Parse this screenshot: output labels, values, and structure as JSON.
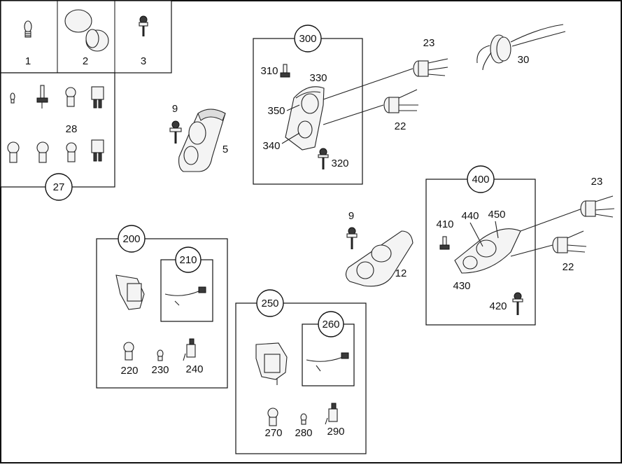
{
  "diagram": {
    "cells": {
      "c1": "1",
      "c2": "2",
      "c3": "3",
      "c28": "28",
      "c27": "27"
    },
    "parts": {
      "p5": "5",
      "p9a": "9",
      "p9b": "9",
      "p12": "12",
      "p22a": "22",
      "p22b": "22",
      "p23a": "23",
      "p23b": "23",
      "p30": "30"
    },
    "group300": {
      "title": "300",
      "l310": "310",
      "l330": "330",
      "l350": "350",
      "l340": "340",
      "l320": "320"
    },
    "group400": {
      "title": "400",
      "l410": "410",
      "l440": "440",
      "l450": "450",
      "l430": "430",
      "l420": "420"
    },
    "group200": {
      "title": "200",
      "sub": "210",
      "l220": "220",
      "l230": "230",
      "l240": "240"
    },
    "group250": {
      "title": "250",
      "sub": "260",
      "l270": "270",
      "l280": "280",
      "l290": "290"
    }
  }
}
